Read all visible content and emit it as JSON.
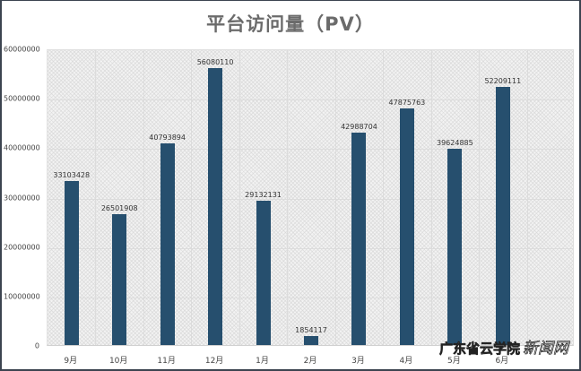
{
  "chart_data": {
    "type": "bar",
    "title": "平台访问量（PV）",
    "xlabel": "",
    "ylabel": "",
    "ylim": [
      0,
      60000000
    ],
    "yticks": [
      "0",
      "10000000",
      "20000000",
      "30000000",
      "40000000",
      "50000000",
      "60000000"
    ],
    "categories": [
      "9月",
      "10月",
      "11月",
      "12月",
      "1月",
      "2月",
      "3月",
      "4月",
      "5月",
      "6月"
    ],
    "values": [
      33103428,
      26501908,
      40793894,
      56080110,
      29132131,
      1854117,
      42988704,
      47875763,
      39624885,
      52209111
    ],
    "data_labels": [
      "33103428",
      "26501908",
      "40793894",
      "56080110",
      "29132131",
      "1854117",
      "42988704",
      "47875763",
      "39624885",
      "52209111"
    ],
    "bar_color": "#264f6e",
    "grid": true,
    "legend": "none"
  },
  "watermark": {
    "text": "广东省云学院",
    "text2": "新闻网"
  }
}
